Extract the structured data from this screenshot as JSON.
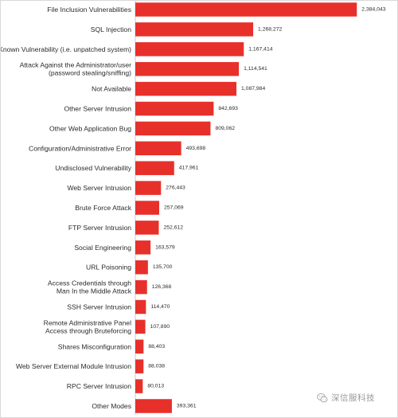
{
  "chart_data": {
    "type": "bar",
    "orientation": "horizontal",
    "title": "",
    "xlabel": "",
    "ylabel": "",
    "bar_color": "#e8302b",
    "grid": false,
    "legend": "none",
    "categories": [
      "File Inclusion Vulnerabilities",
      "SQL Injection",
      "Known Vulnerability (i.e. unpatched system)",
      "Attack Against the Administrator/user\n(password stealing/sniffing)",
      "Not Available",
      "Other Server Intrusion",
      "Other Web Application Bug",
      "Configuration/Administrative Error",
      "Undisclosed Vulnerability",
      "Web Server Intrusion",
      "Brute Force Attack",
      "FTP Server Intrusion",
      "Social Engineering",
      "URL Poisoning",
      "Access Credentials through\nMan In the Middle Attack",
      "SSH Server Intrusion",
      "Remote Administrative Panel\nAccess through Bruteforcing",
      "Shares Misconfiguration",
      "Web Server External Module Intrusion",
      "RPC Server Intrusion",
      "Other Modes"
    ],
    "values": [
      2384043,
      1268272,
      1167414,
      1114541,
      1087984,
      842693,
      809062,
      493698,
      417961,
      276443,
      257069,
      252612,
      163579,
      135700,
      126368,
      114470,
      107890,
      88403,
      88038,
      80013,
      393361
    ],
    "value_labels": [
      "2,384,043",
      "1,268,272",
      "1,167,414",
      "1,114,541",
      "1,087,984",
      "842,693",
      "809,062",
      "493,698",
      "417,961",
      "276,443",
      "257,069",
      "252,612",
      "163,579",
      "135,700",
      "126,368",
      "114,470",
      "107,890",
      "88,403",
      "88,038",
      "80,013",
      "393,361"
    ],
    "xlim": [
      0,
      2450000
    ]
  },
  "watermark": {
    "icon": "wechat-icon",
    "text": "深信服科技"
  }
}
